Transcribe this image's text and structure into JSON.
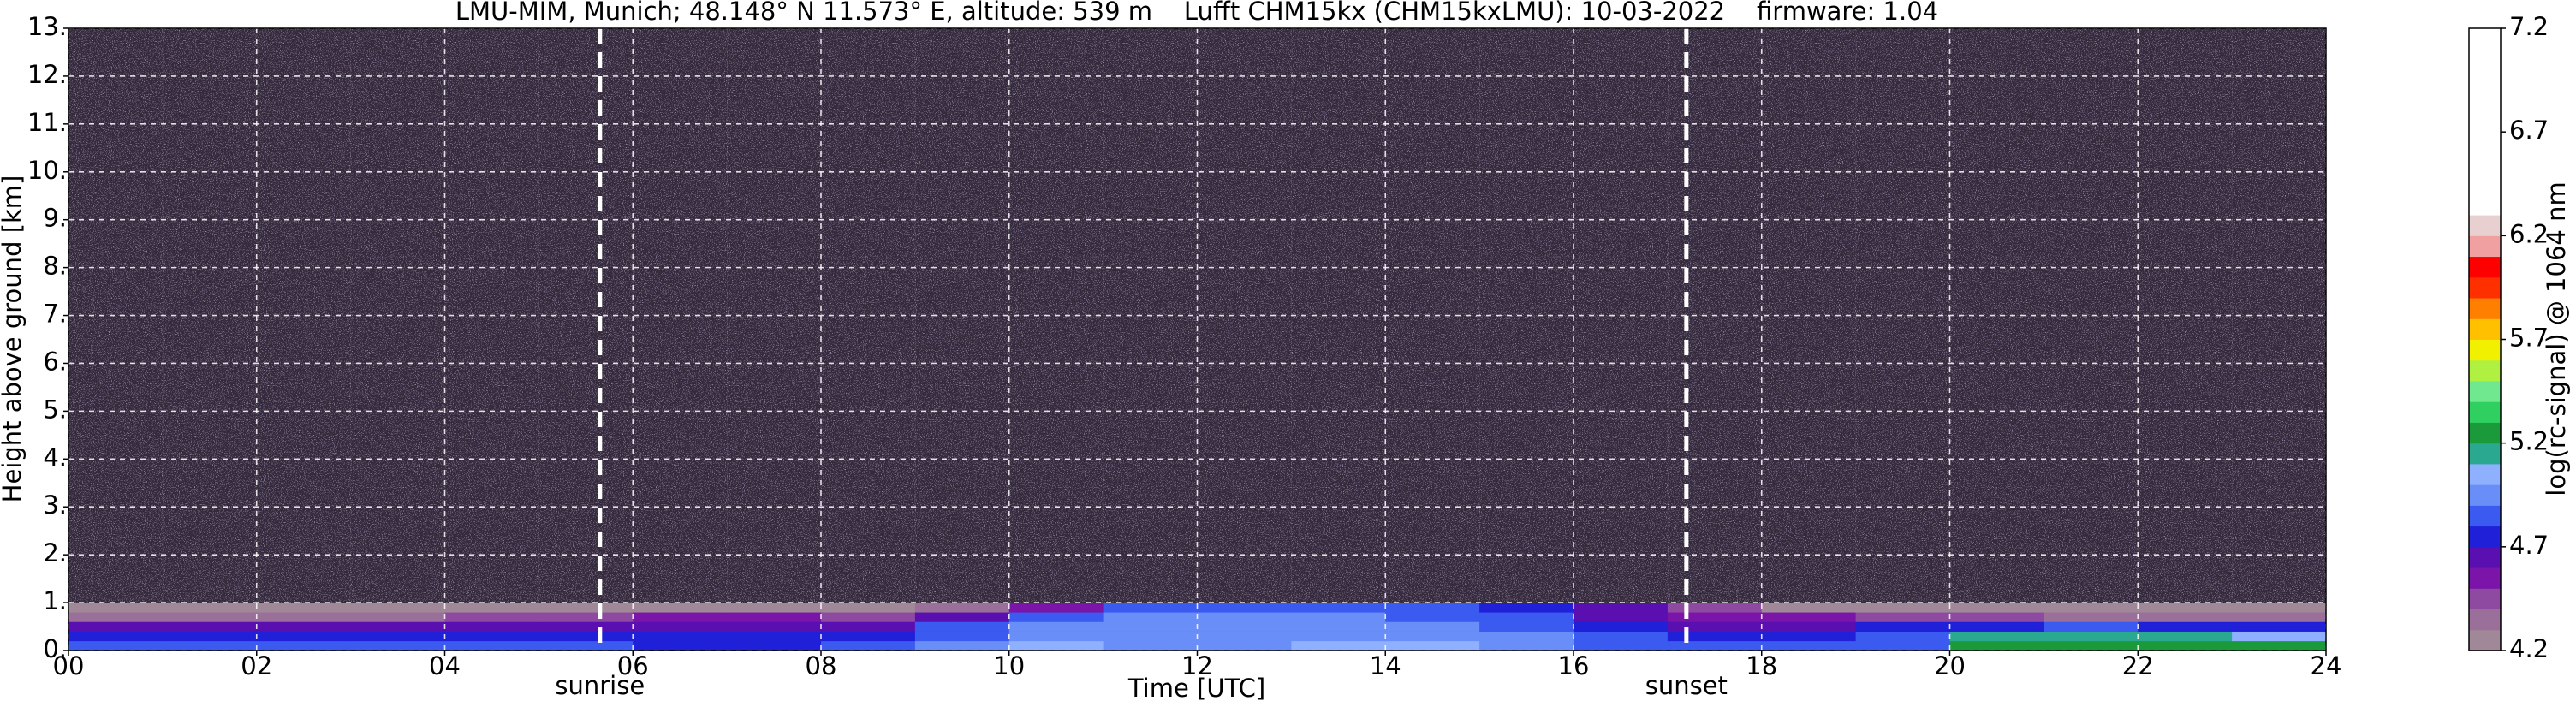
{
  "chart_data": {
    "type": "heatmap",
    "title": "LMU-MIM, Munich; 48.148° N 11.573° E, altitude: 539 m    Lufft CHM15kx (CHM15kxLMU): 10-03-2022    firmware: 1.04",
    "xlabel": "Time [UTC]",
    "ylabel": "Height above ground [km]",
    "colorbar_label": "log(rc-signal) @ 1064 nm",
    "xlim": [
      0,
      24
    ],
    "ylim": [
      0,
      13
    ],
    "xticks": [
      {
        "value": 0,
        "label": "00"
      },
      {
        "value": 2,
        "label": "02"
      },
      {
        "value": 4,
        "label": "04"
      },
      {
        "value": 6,
        "label": "06"
      },
      {
        "value": 8,
        "label": "08"
      },
      {
        "value": 10,
        "label": "10"
      },
      {
        "value": 12,
        "label": "12"
      },
      {
        "value": 14,
        "label": "14"
      },
      {
        "value": 16,
        "label": "16"
      },
      {
        "value": 18,
        "label": "18"
      },
      {
        "value": 20,
        "label": "20"
      },
      {
        "value": 22,
        "label": "22"
      },
      {
        "value": 24,
        "label": "24"
      }
    ],
    "yticks": [
      {
        "value": 0,
        "label": "0."
      },
      {
        "value": 1,
        "label": "1."
      },
      {
        "value": 2,
        "label": "2."
      },
      {
        "value": 3,
        "label": "3."
      },
      {
        "value": 4,
        "label": "4."
      },
      {
        "value": 5,
        "label": "5."
      },
      {
        "value": 6,
        "label": "6."
      },
      {
        "value": 7,
        "label": "7."
      },
      {
        "value": 8,
        "label": "8."
      },
      {
        "value": 9,
        "label": "9."
      },
      {
        "value": 10,
        "label": "10."
      },
      {
        "value": 11,
        "label": "11."
      },
      {
        "value": 12,
        "label": "12."
      },
      {
        "value": 13,
        "label": "13."
      }
    ],
    "grid": true,
    "clim": [
      4.2,
      7.2
    ],
    "cticks": [
      4.2,
      4.7,
      5.2,
      5.7,
      6.2,
      6.7,
      7.2
    ],
    "colors": [
      "#a08898",
      "#9a6f9a",
      "#8e4aa0",
      "#7b14a8",
      "#5a0fb0",
      "#2020d8",
      "#3a5af0",
      "#6a8ef8",
      "#8fb0ff",
      "#2aa890",
      "#1a9a3a",
      "#30d060",
      "#70e890",
      "#b0f040",
      "#f0f000",
      "#ffc000",
      "#ff8000",
      "#ff3000",
      "#ff0000",
      "#f0a0a0",
      "#e8d0d0",
      "#ffffff",
      "#ffffff",
      "#ffffff",
      "#ffffff",
      "#ffffff",
      "#ffffff",
      "#ffffff",
      "#ffffff",
      "#ffffff"
    ],
    "x_edges": [
      0,
      1,
      2,
      3,
      4,
      5,
      6,
      7,
      8,
      9,
      10,
      11,
      12,
      13,
      14,
      15,
      16,
      17,
      18,
      19,
      20,
      21,
      22,
      23,
      24
    ],
    "y_edges": [
      0,
      0.2,
      0.4,
      0.6,
      0.8,
      1.0,
      13
    ],
    "z": [
      [
        4.8,
        4.8,
        4.8,
        4.8,
        4.8,
        4.8,
        4.75,
        4.75,
        4.8,
        4.9,
        5.0,
        4.9,
        4.95,
        5.0,
        5.0,
        4.9,
        4.85,
        4.8,
        4.8,
        4.8,
        5.2,
        5.2,
        5.2,
        5.2
      ],
      [
        4.75,
        4.75,
        4.75,
        4.75,
        4.75,
        4.75,
        4.7,
        4.7,
        4.75,
        4.85,
        4.9,
        4.9,
        4.9,
        4.95,
        4.9,
        4.9,
        4.8,
        4.75,
        4.75,
        4.8,
        5.1,
        5.1,
        5.1,
        5.0
      ],
      [
        4.6,
        4.6,
        4.6,
        4.6,
        4.6,
        4.6,
        4.6,
        4.6,
        4.65,
        4.8,
        4.9,
        4.9,
        4.9,
        4.9,
        4.9,
        4.85,
        4.7,
        4.6,
        4.65,
        4.7,
        4.75,
        4.8,
        4.75,
        4.7
      ],
      [
        4.35,
        4.35,
        4.35,
        4.35,
        4.4,
        4.4,
        4.5,
        4.5,
        4.45,
        4.6,
        4.85,
        4.9,
        4.9,
        4.9,
        4.85,
        4.8,
        4.6,
        4.5,
        4.5,
        4.45,
        4.4,
        4.35,
        4.35,
        4.35
      ],
      [
        4.2,
        4.2,
        4.2,
        4.2,
        4.2,
        4.2,
        4.25,
        4.25,
        4.25,
        4.3,
        4.5,
        4.8,
        4.85,
        4.85,
        4.8,
        4.75,
        4.6,
        4.4,
        4.25,
        4.2,
        4.2,
        4.2,
        4.2,
        4.2
      ],
      [
        4.2,
        4.2,
        4.2,
        4.2,
        4.2,
        4.2,
        4.2,
        4.2,
        4.2,
        4.2,
        4.2,
        4.2,
        4.2,
        4.2,
        4.2,
        4.2,
        4.2,
        4.2,
        4.2,
        4.2,
        4.2,
        4.2,
        4.2,
        4.2
      ]
    ],
    "annotations": [
      {
        "x": 5.65,
        "label": "sunrise"
      },
      {
        "x": 17.2,
        "label": "sunset"
      }
    ]
  }
}
